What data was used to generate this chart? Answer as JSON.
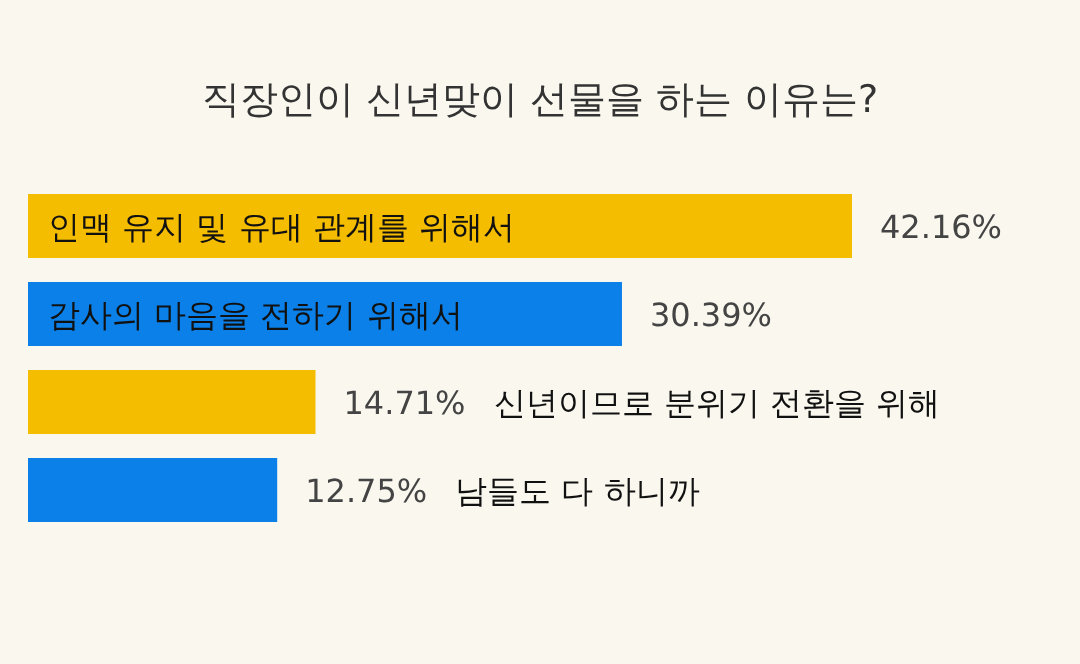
{
  "chart_data": {
    "type": "bar",
    "orientation": "horizontal",
    "title": "직장인이 신년맞이 선물을 하는 이유는?",
    "categories": [
      "인맥 유지 및 유대 관계를 위해서",
      "감사의 마음을 전하기 위해서",
      "신년이므로 분위기 전환을 위해",
      "남들도 다 하니까"
    ],
    "values": [
      42.16,
      30.39,
      14.71,
      12.75
    ],
    "value_labels": [
      "42.16%",
      "30.39%",
      "14.71%",
      "12.75%"
    ],
    "colors": [
      "#f5bd00",
      "#0a80e8",
      "#f5bd00",
      "#0a80e8"
    ]
  }
}
